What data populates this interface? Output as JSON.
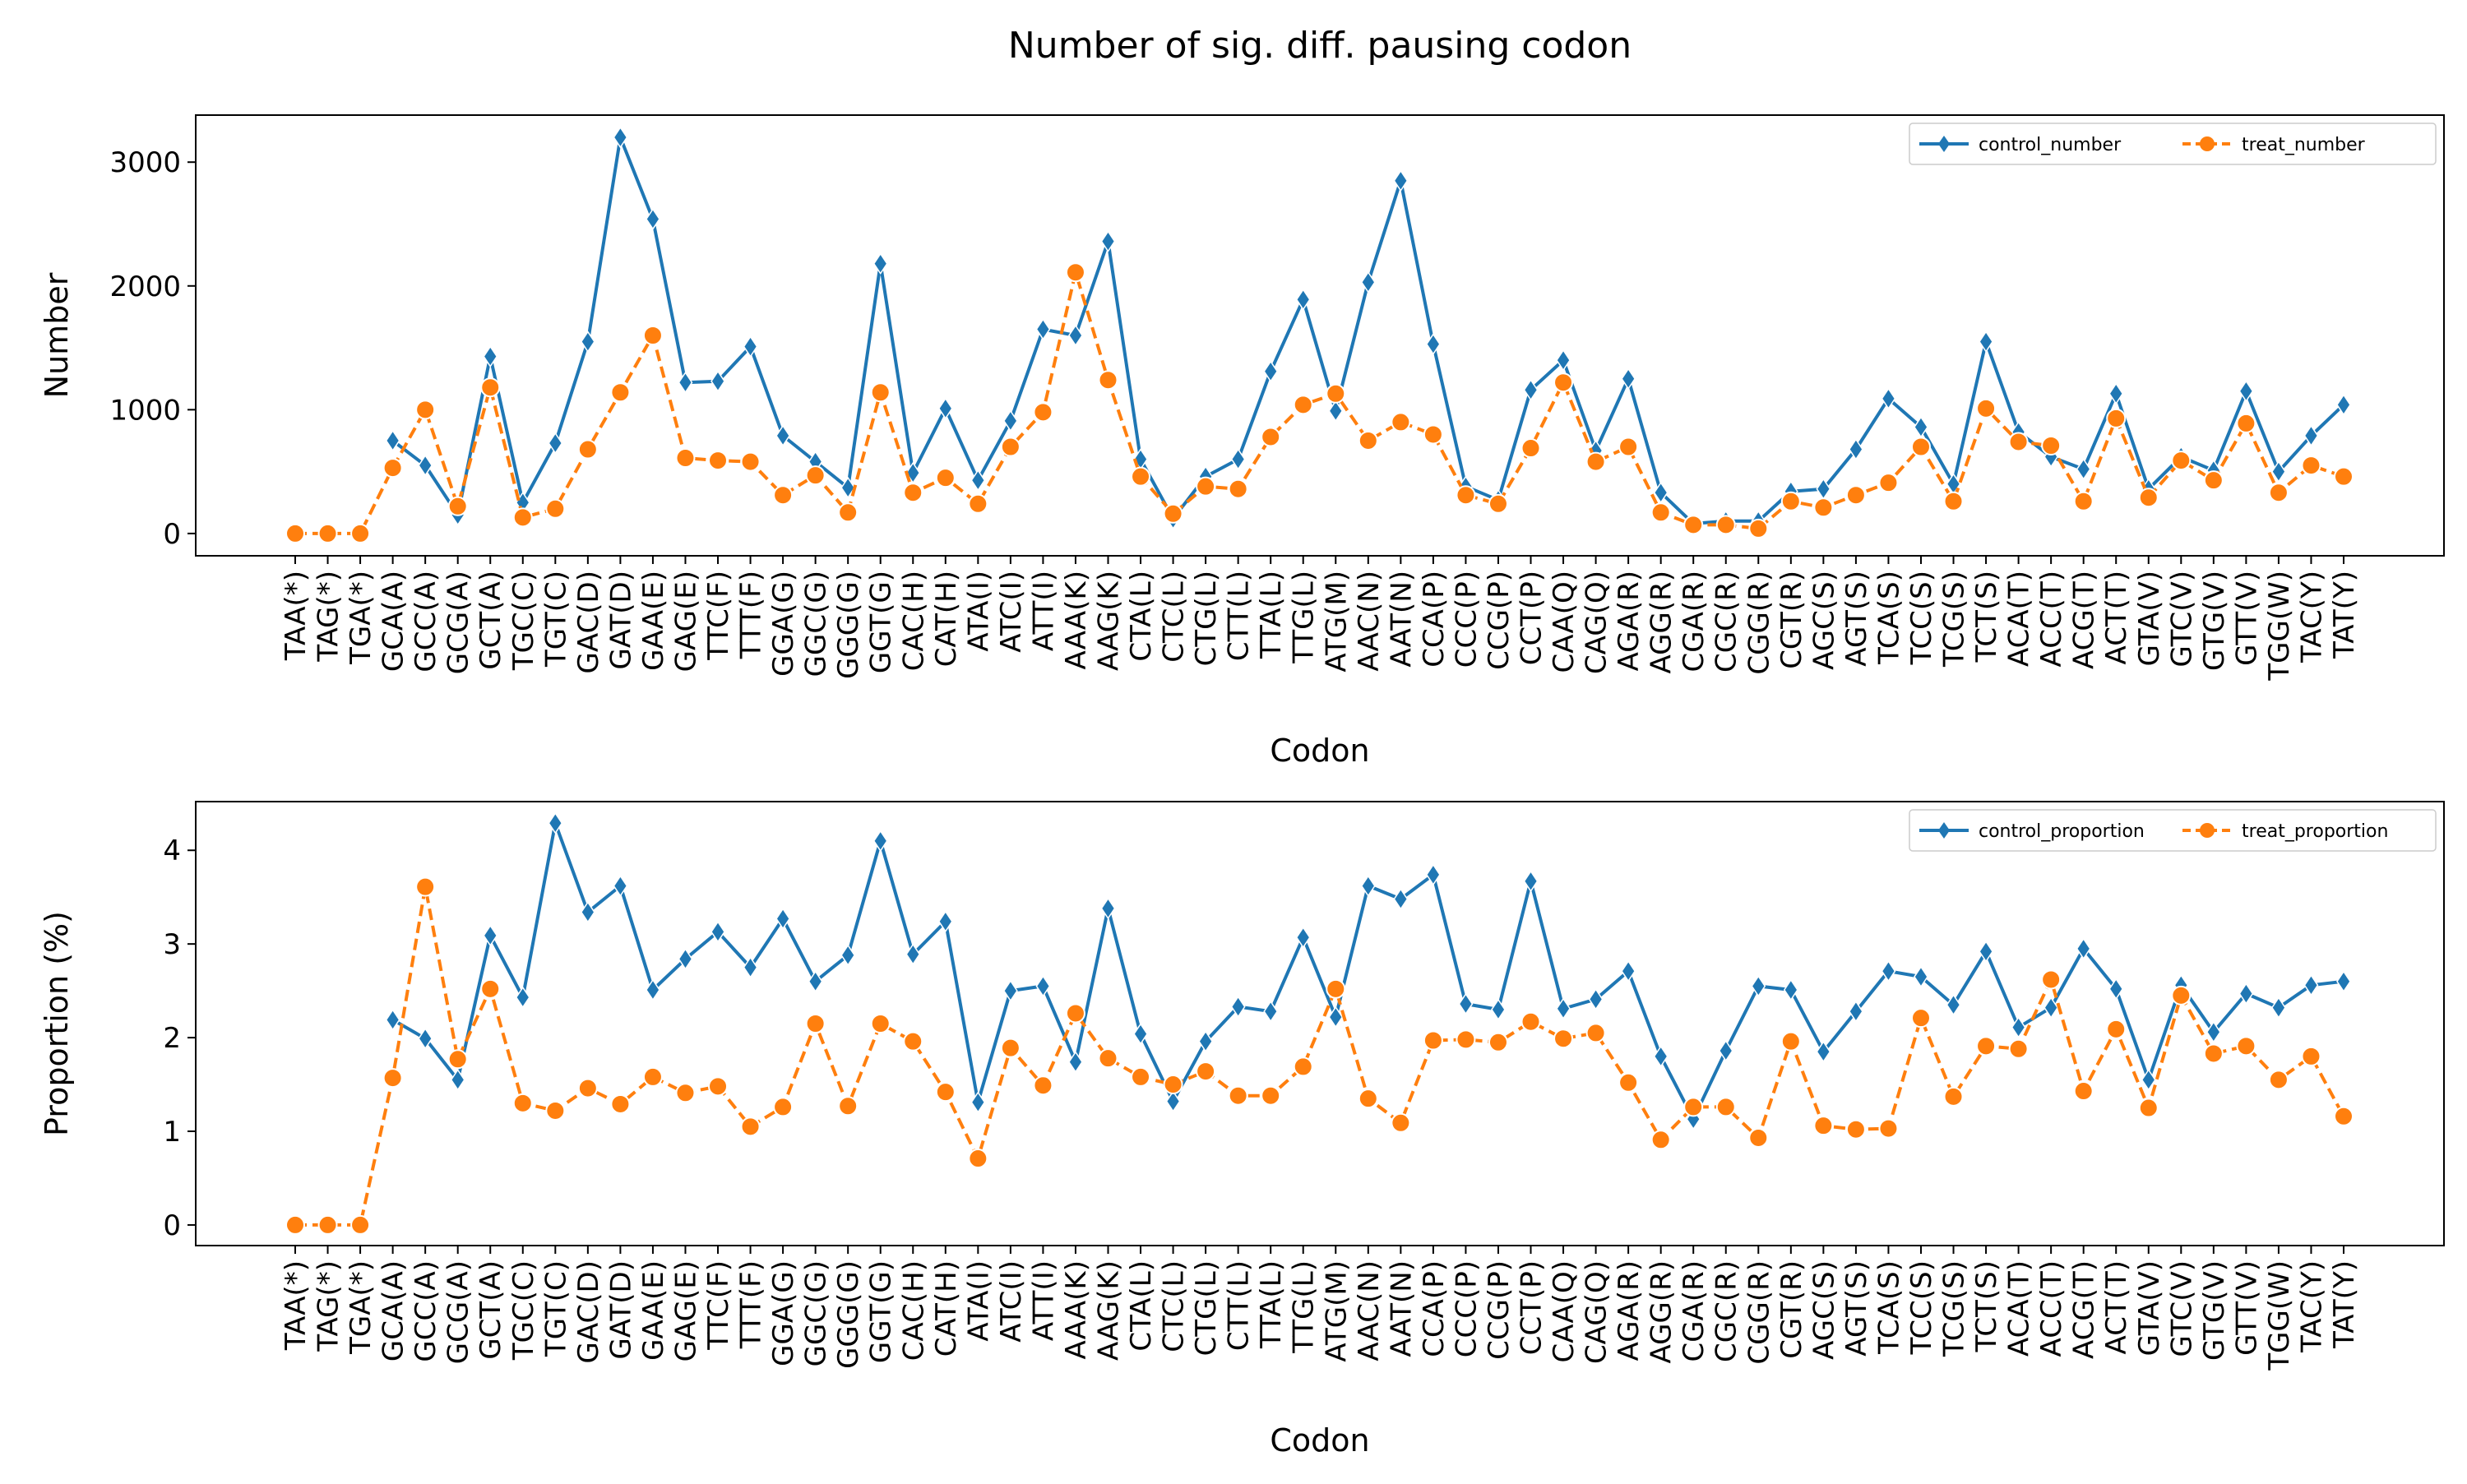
{
  "figure_title": "Number of sig. diff. pausing codon",
  "colors": {
    "control": "#1f77b4",
    "treat": "#ff7f0e"
  },
  "codons": [
    "TAA(*)",
    "TAG(*)",
    "TGA(*)",
    "GCA(A)",
    "GCC(A)",
    "GCG(A)",
    "GCT(A)",
    "TGC(C)",
    "TGT(C)",
    "GAC(D)",
    "GAT(D)",
    "GAA(E)",
    "GAG(E)",
    "TTC(F)",
    "TTT(F)",
    "GGA(G)",
    "GGC(G)",
    "GGG(G)",
    "GGT(G)",
    "CAC(H)",
    "CAT(H)",
    "ATA(I)",
    "ATC(I)",
    "ATT(I)",
    "AAA(K)",
    "AAG(K)",
    "CTA(L)",
    "CTC(L)",
    "CTG(L)",
    "CTT(L)",
    "TTA(L)",
    "TTG(L)",
    "ATG(M)",
    "AAC(N)",
    "AAT(N)",
    "CCA(P)",
    "CCC(P)",
    "CCG(P)",
    "CCT(P)",
    "CAA(Q)",
    "CAG(Q)",
    "AGA(R)",
    "AGG(R)",
    "CGA(R)",
    "CGC(R)",
    "CGG(R)",
    "CGT(R)",
    "AGC(S)",
    "AGT(S)",
    "TCA(S)",
    "TCC(S)",
    "TCG(S)",
    "TCT(S)",
    "ACA(T)",
    "ACC(T)",
    "ACG(T)",
    "ACT(T)",
    "GTA(V)",
    "GTC(V)",
    "GTG(V)",
    "GTT(V)",
    "TGG(W)",
    "TAC(Y)",
    "TAT(Y)"
  ],
  "chart_data": [
    {
      "type": "line",
      "title": "",
      "xlabel": "Codon",
      "ylabel": "Number",
      "ylim": [
        -180,
        3380
      ],
      "yticks": [
        0,
        1000,
        2000,
        3000
      ],
      "legend_position": "top-right",
      "series": [
        {
          "name": "control_number",
          "marker": "diamond",
          "linestyle": "solid",
          "values": [
            null,
            null,
            null,
            750,
            550,
            150,
            1430,
            250,
            730,
            1550,
            3200,
            2540,
            1220,
            1230,
            1510,
            790,
            580,
            370,
            2180,
            490,
            1010,
            430,
            910,
            1650,
            1600,
            2360,
            600,
            120,
            460,
            600,
            1310,
            1890,
            990,
            2030,
            2850,
            1530,
            380,
            270,
            1160,
            1400,
            670,
            1250,
            330,
            80,
            100,
            100,
            340,
            360,
            680,
            1090,
            860,
            400,
            1550,
            820,
            620,
            520,
            1130,
            360,
            620,
            510,
            1150,
            500,
            790,
            1040
          ]
        },
        {
          "name": "treat_number",
          "marker": "circle",
          "linestyle": "dashed",
          "values": [
            0,
            0,
            0,
            530,
            1000,
            220,
            1180,
            130,
            200,
            680,
            1140,
            1600,
            610,
            590,
            580,
            310,
            470,
            170,
            1140,
            330,
            450,
            240,
            700,
            980,
            2110,
            1240,
            460,
            160,
            380,
            360,
            780,
            1040,
            1130,
            750,
            900,
            800,
            310,
            240,
            690,
            1220,
            580,
            700,
            170,
            70,
            70,
            40,
            260,
            210,
            310,
            410,
            700,
            260,
            1010,
            740,
            710,
            260,
            930,
            290,
            590,
            430,
            890,
            330,
            550,
            460
          ]
        }
      ]
    },
    {
      "type": "line",
      "title": "",
      "xlabel": "Codon",
      "ylabel": "Proportion (%)",
      "ylim": [
        -0.22,
        4.52
      ],
      "yticks": [
        0,
        1,
        2,
        3,
        4
      ],
      "legend_position": "top-right",
      "series": [
        {
          "name": "control_proportion",
          "marker": "diamond",
          "linestyle": "solid",
          "values": [
            null,
            null,
            null,
            2.19,
            1.99,
            1.55,
            3.09,
            2.43,
            4.29,
            3.34,
            3.62,
            2.51,
            2.84,
            3.13,
            2.75,
            3.27,
            2.6,
            2.88,
            4.1,
            2.89,
            3.24,
            1.31,
            2.5,
            2.55,
            1.74,
            3.38,
            2.04,
            1.32,
            1.96,
            2.33,
            2.28,
            3.07,
            2.22,
            3.62,
            3.48,
            3.74,
            2.36,
            2.3,
            3.67,
            2.31,
            2.41,
            2.71,
            1.8,
            1.13,
            1.86,
            2.55,
            2.51,
            1.85,
            2.28,
            2.71,
            2.65,
            2.35,
            2.92,
            2.11,
            2.32,
            2.95,
            2.52,
            1.55,
            2.56,
            2.06,
            2.47,
            2.32,
            2.56,
            2.6
          ]
        },
        {
          "name": "treat_proportion",
          "marker": "circle",
          "linestyle": "dashed",
          "values": [
            0,
            0,
            0,
            1.57,
            3.61,
            1.77,
            2.52,
            1.3,
            1.22,
            1.46,
            1.29,
            1.58,
            1.41,
            1.48,
            1.05,
            1.26,
            2.15,
            1.27,
            2.15,
            1.96,
            1.42,
            0.71,
            1.89,
            1.49,
            2.26,
            1.78,
            1.58,
            1.5,
            1.64,
            1.38,
            1.38,
            1.69,
            2.52,
            1.35,
            1.09,
            1.97,
            1.98,
            1.95,
            2.17,
            1.99,
            2.05,
            1.52,
            0.91,
            1.26,
            1.26,
            0.93,
            1.96,
            1.06,
            1.02,
            1.03,
            2.21,
            1.37,
            1.91,
            1.88,
            2.62,
            1.43,
            2.09,
            1.25,
            2.45,
            1.83,
            1.91,
            1.55,
            1.8,
            1.16
          ]
        }
      ]
    }
  ]
}
